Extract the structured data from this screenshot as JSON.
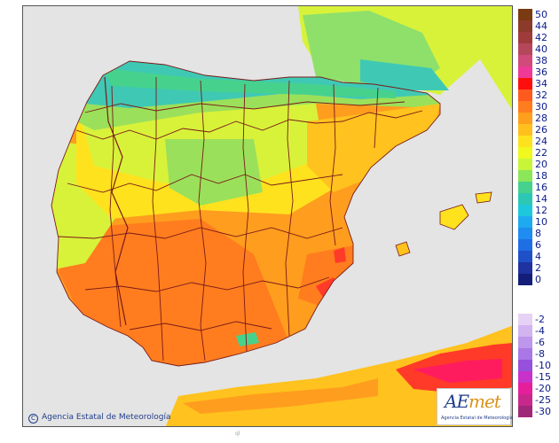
{
  "map": {
    "colors": {
      "sea": "#e4e4e4",
      "land_other": "#d6d6d6",
      "cool_green": "#3fc9b4",
      "green": "#9be05a",
      "yellow_green": "#d8f23a",
      "yellow": "#f4f01e",
      "orange_light": "#ffc21e",
      "orange": "#ff9d1e",
      "orange_dark": "#ff7d1e",
      "hot_red": "#ff3a28",
      "hot_pink": "#ff1c5e",
      "border": "#7a1a1a"
    }
  },
  "legend": {
    "positive": [
      {
        "label": "50",
        "color": "#7a3a12"
      },
      {
        "label": "44",
        "color": "#8c3a2a"
      },
      {
        "label": "42",
        "color": "#9e3b3b"
      },
      {
        "label": "40",
        "color": "#b4475a"
      },
      {
        "label": "38",
        "color": "#d04a7a"
      },
      {
        "label": "36",
        "color": "#ee3a96"
      },
      {
        "label": "34",
        "color": "#ff0e0e"
      },
      {
        "label": "32",
        "color": "#ff5a1e"
      },
      {
        "label": "30",
        "color": "#ff7d1e"
      },
      {
        "label": "28",
        "color": "#ff9f1e"
      },
      {
        "label": "26",
        "color": "#ffc01e"
      },
      {
        "label": "24",
        "color": "#ffe21e"
      },
      {
        "label": "22",
        "color": "#f0f81e"
      },
      {
        "label": "20",
        "color": "#c8f53a"
      },
      {
        "label": "18",
        "color": "#8ce65a"
      },
      {
        "label": "16",
        "color": "#46d28c"
      },
      {
        "label": "14",
        "color": "#2cc8b4"
      },
      {
        "label": "12",
        "color": "#1ec8dc"
      },
      {
        "label": "10",
        "color": "#1eaaf0"
      },
      {
        "label": "8",
        "color": "#1e8cf0"
      },
      {
        "label": "6",
        "color": "#1e6ee6"
      },
      {
        "label": "4",
        "color": "#1e50c8"
      },
      {
        "label": "2",
        "color": "#1e32a0"
      },
      {
        "label": "0",
        "color": "#141e78"
      }
    ],
    "negative": [
      {
        "label": "-2",
        "color": "#e6d2f5"
      },
      {
        "label": "-4",
        "color": "#d2b4f0"
      },
      {
        "label": "-6",
        "color": "#be96eb"
      },
      {
        "label": "-8",
        "color": "#aa78e6"
      },
      {
        "label": "-10",
        "color": "#9650dc"
      },
      {
        "label": "-15",
        "color": "#c832c8"
      },
      {
        "label": "-20",
        "color": "#e61e9c"
      },
      {
        "label": "-25",
        "color": "#c8288c"
      },
      {
        "label": "-30",
        "color": "#a02878"
      }
    ]
  },
  "credit": {
    "symbol": "C",
    "text": "Agencia Estatal de Meteorología"
  },
  "logo": {
    "word_a": "AE",
    "word_b": "met",
    "subtitle": "Agencia Estatal de Meteorología"
  },
  "fine": {
    "text": "ql"
  }
}
